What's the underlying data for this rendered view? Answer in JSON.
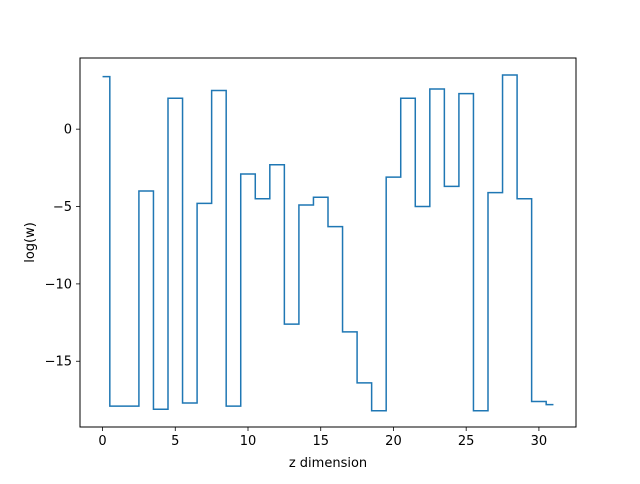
{
  "chart_data": {
    "type": "line",
    "drawstyle": "steps-mid",
    "xlabel": "z dimension",
    "ylabel": "log(w)",
    "xlim": [
      -1.55,
      32.55
    ],
    "ylim": [
      -19.25,
      4.6
    ],
    "xticks": [
      0,
      5,
      10,
      15,
      20,
      25,
      30
    ],
    "xtick_labels": [
      "0",
      "5",
      "10",
      "15",
      "20",
      "25",
      "30"
    ],
    "yticks": [
      0,
      -5,
      -10,
      -15
    ],
    "ytick_labels": [
      "0",
      "−5",
      "−10",
      "−15"
    ],
    "grid": false,
    "legend": "none",
    "series": [
      {
        "color": "#1f77b4",
        "x": [
          0,
          1,
          2,
          3,
          4,
          5,
          6,
          7,
          8,
          9,
          10,
          11,
          12,
          13,
          14,
          15,
          16,
          17,
          18,
          19,
          20,
          21,
          22,
          23,
          24,
          25,
          26,
          27,
          28,
          29,
          30,
          31
        ],
        "y": [
          3.4,
          -17.9,
          -17.9,
          -4.0,
          -18.1,
          2.0,
          -17.7,
          -4.8,
          2.5,
          -17.9,
          -2.9,
          -4.5,
          -2.3,
          -12.6,
          -4.9,
          -4.4,
          -6.3,
          -13.1,
          -16.4,
          -18.2,
          -3.1,
          2.0,
          -5.0,
          2.6,
          -3.7,
          2.3,
          -18.2,
          -4.1,
          3.5,
          -4.5,
          -17.6,
          -17.8
        ]
      }
    ]
  }
}
